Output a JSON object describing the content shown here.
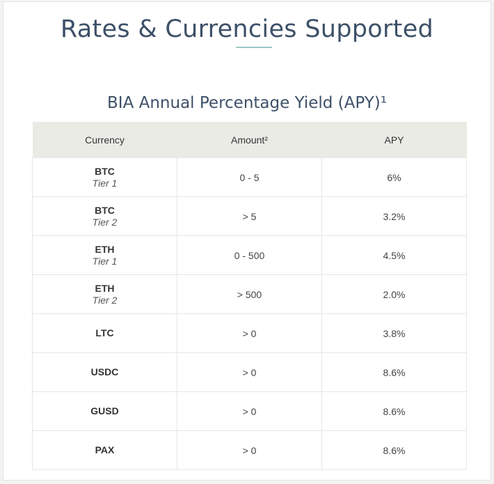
{
  "page": {
    "title": "Rates & Currencies Supported",
    "subtitle": "BIA Annual Percentage Yield (APY)¹"
  },
  "colors": {
    "title": "#3d5068",
    "accent_rule": "#9cc9c6",
    "header_bg": "#ebebe6",
    "border": "#e6e6e6"
  },
  "table": {
    "headers": [
      "Currency",
      "Amount²",
      "APY"
    ],
    "rows": [
      {
        "currency": "BTC",
        "tier": "Tier 1",
        "amount": "0 - 5",
        "apy": "6%"
      },
      {
        "currency": "BTC",
        "tier": "Tier 2",
        "amount": "> 5",
        "apy": "3.2%"
      },
      {
        "currency": "ETH",
        "tier": "Tier 1",
        "amount": "0 - 500",
        "apy": "4.5%"
      },
      {
        "currency": "ETH",
        "tier": "Tier 2",
        "amount": "> 500",
        "apy": "2.0%"
      },
      {
        "currency": "LTC",
        "tier": "",
        "amount": "> 0",
        "apy": "3.8%"
      },
      {
        "currency": "USDC",
        "tier": "",
        "amount": "> 0",
        "apy": "8.6%"
      },
      {
        "currency": "GUSD",
        "tier": "",
        "amount": "> 0",
        "apy": "8.6%"
      },
      {
        "currency": "PAX",
        "tier": "",
        "amount": "> 0",
        "apy": "8.6%"
      }
    ]
  }
}
